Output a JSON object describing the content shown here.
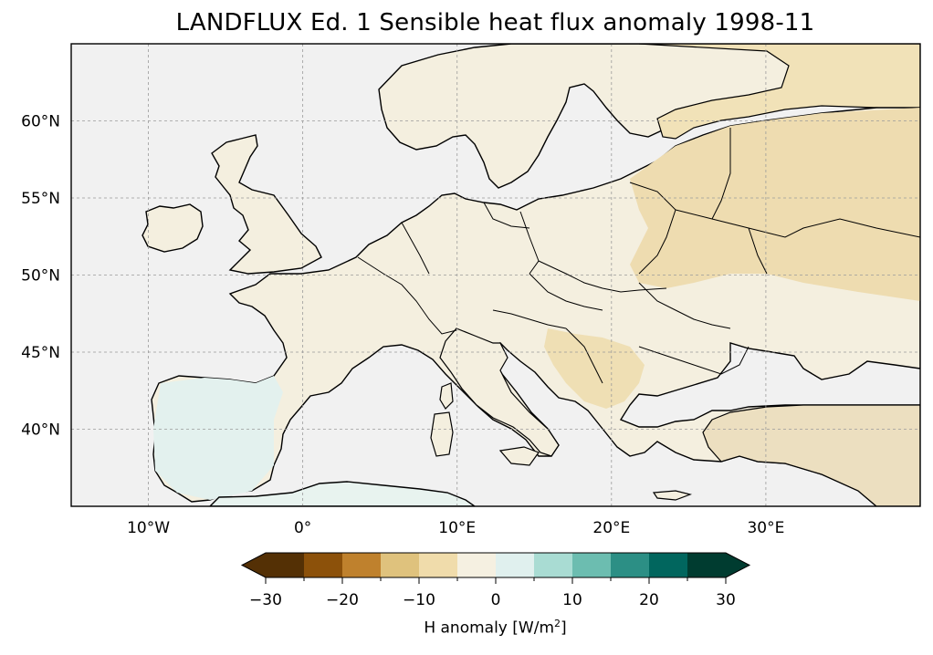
{
  "title": "LANDFLUX Ed. 1 Sensible heat flux anomaly 1998-11",
  "map": {
    "projection": "PlateCarree",
    "lon_range": [
      -15,
      40
    ],
    "lat_range": [
      35,
      65
    ],
    "lon_ticks": [
      {
        "value": -10,
        "label": "10°W"
      },
      {
        "value": 0,
        "label": "0°"
      },
      {
        "value": 10,
        "label": "10°E"
      },
      {
        "value": 20,
        "label": "20°E"
      },
      {
        "value": 30,
        "label": "30°E"
      }
    ],
    "lat_ticks": [
      {
        "value": 40,
        "label": "40°N"
      },
      {
        "value": 45,
        "label": "45°N"
      },
      {
        "value": 50,
        "label": "50°N"
      },
      {
        "value": 55,
        "label": "55°N"
      },
      {
        "value": 60,
        "label": "60°N"
      }
    ],
    "gridlines": true,
    "ocean_color": "#f0f0f0",
    "coastline_color": "#000000"
  },
  "colorbar": {
    "label_prefix": "H anomaly [W/m",
    "label_sup": "2",
    "label_suffix": "]",
    "levels": [
      -30,
      -25,
      -20,
      -15,
      -10,
      -5,
      0,
      5,
      10,
      15,
      20,
      25,
      30
    ],
    "tick_labels": [
      "−30",
      "−20",
      "−10",
      "0",
      "10",
      "20",
      "30"
    ],
    "tick_values": [
      -30,
      -20,
      -10,
      0,
      10,
      20,
      30
    ],
    "colors": [
      "#543005",
      "#8c510a",
      "#bf812d",
      "#dfc27d",
      "#f0dcab",
      "#f5f0e1",
      "#e0f0ee",
      "#a9dcd3",
      "#6cbdb0",
      "#2c8f85",
      "#01665e",
      "#003c30"
    ],
    "extend": "both"
  }
}
